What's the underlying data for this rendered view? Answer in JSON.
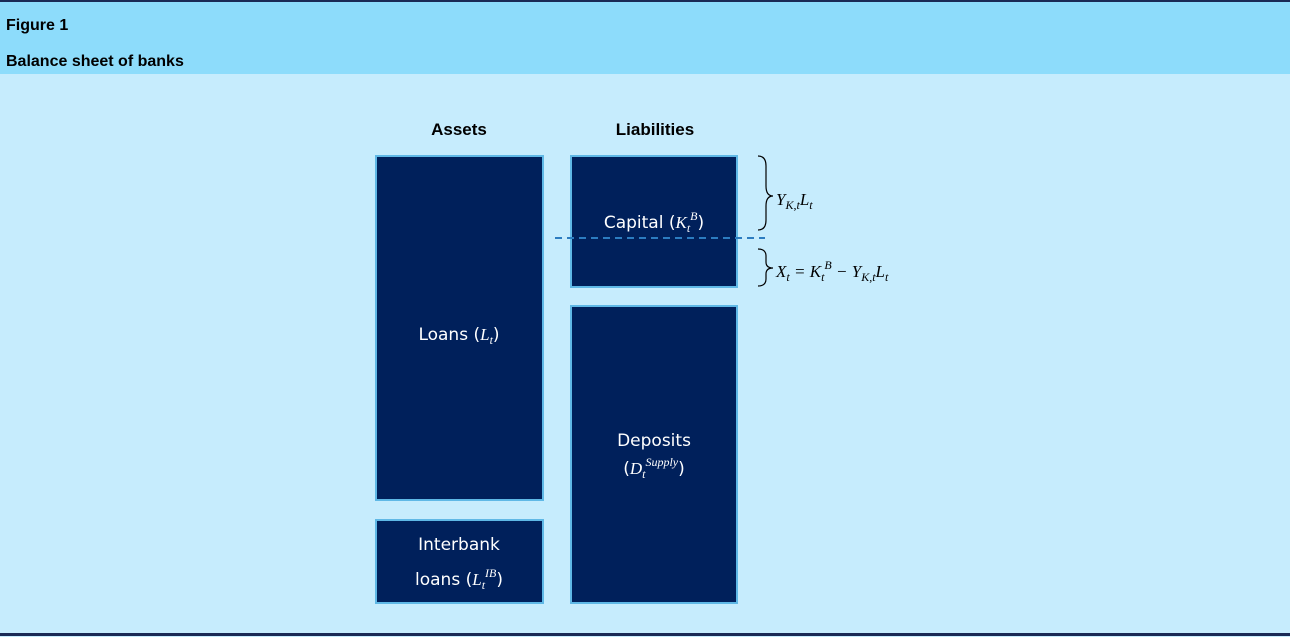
{
  "header": {
    "figure": "Figure 1",
    "title": "Balance sheet of banks"
  },
  "columns": [
    "Assets",
    "Liabilities"
  ],
  "boxes": [
    {
      "lines": [
        [
          {
            "text": "Loans ("
          },
          {
            "text": "L",
            "style": "italic"
          },
          {
            "text": "t",
            "style": "sub"
          },
          {
            "text": ")"
          }
        ]
      ]
    },
    {
      "lines": [
        [
          {
            "text": "Interbank"
          }
        ],
        [
          {
            "text": "loans ("
          },
          {
            "text": "L",
            "style": "italic"
          },
          {
            "text": "t",
            "style": "sub"
          },
          {
            "text": "IB",
            "style": "sup"
          },
          {
            "text": ")"
          }
        ]
      ]
    },
    {
      "lines": [
        [
          {
            "text": "Capital ("
          },
          {
            "text": "K",
            "style": "italic"
          },
          {
            "text": "t",
            "style": "sub"
          },
          {
            "text": "B",
            "style": "sup"
          },
          {
            "text": ")"
          }
        ]
      ]
    },
    {
      "lines": [
        [
          {
            "text": "Deposits"
          }
        ],
        [
          {
            "text": "("
          },
          {
            "text": "D",
            "style": "italic"
          },
          {
            "text": "t",
            "style": "sub"
          },
          {
            "text": "Supply",
            "style": "sup"
          },
          {
            "text": ")"
          }
        ]
      ]
    }
  ],
  "annotations": [
    [
      {
        "text": "Υ",
        "style": "italic"
      },
      {
        "text": "K,t",
        "style": "sub"
      },
      {
        "text": "L",
        "style": "italic"
      },
      {
        "text": "t",
        "style": "sub"
      }
    ],
    [
      {
        "text": "X",
        "style": "italic"
      },
      {
        "text": "t",
        "style": "sub"
      },
      {
        "text": " = ",
        "style": "math"
      },
      {
        "text": "K",
        "style": "italic"
      },
      {
        "text": "t",
        "style": "sub"
      },
      {
        "text": "B",
        "style": "sup"
      },
      {
        "text": " − ",
        "style": "math"
      },
      {
        "text": "Υ",
        "style": "italic"
      },
      {
        "text": "K,t",
        "style": "sub"
      },
      {
        "text": "L",
        "style": "italic"
      },
      {
        "text": "t",
        "style": "sub"
      }
    ]
  ]
}
